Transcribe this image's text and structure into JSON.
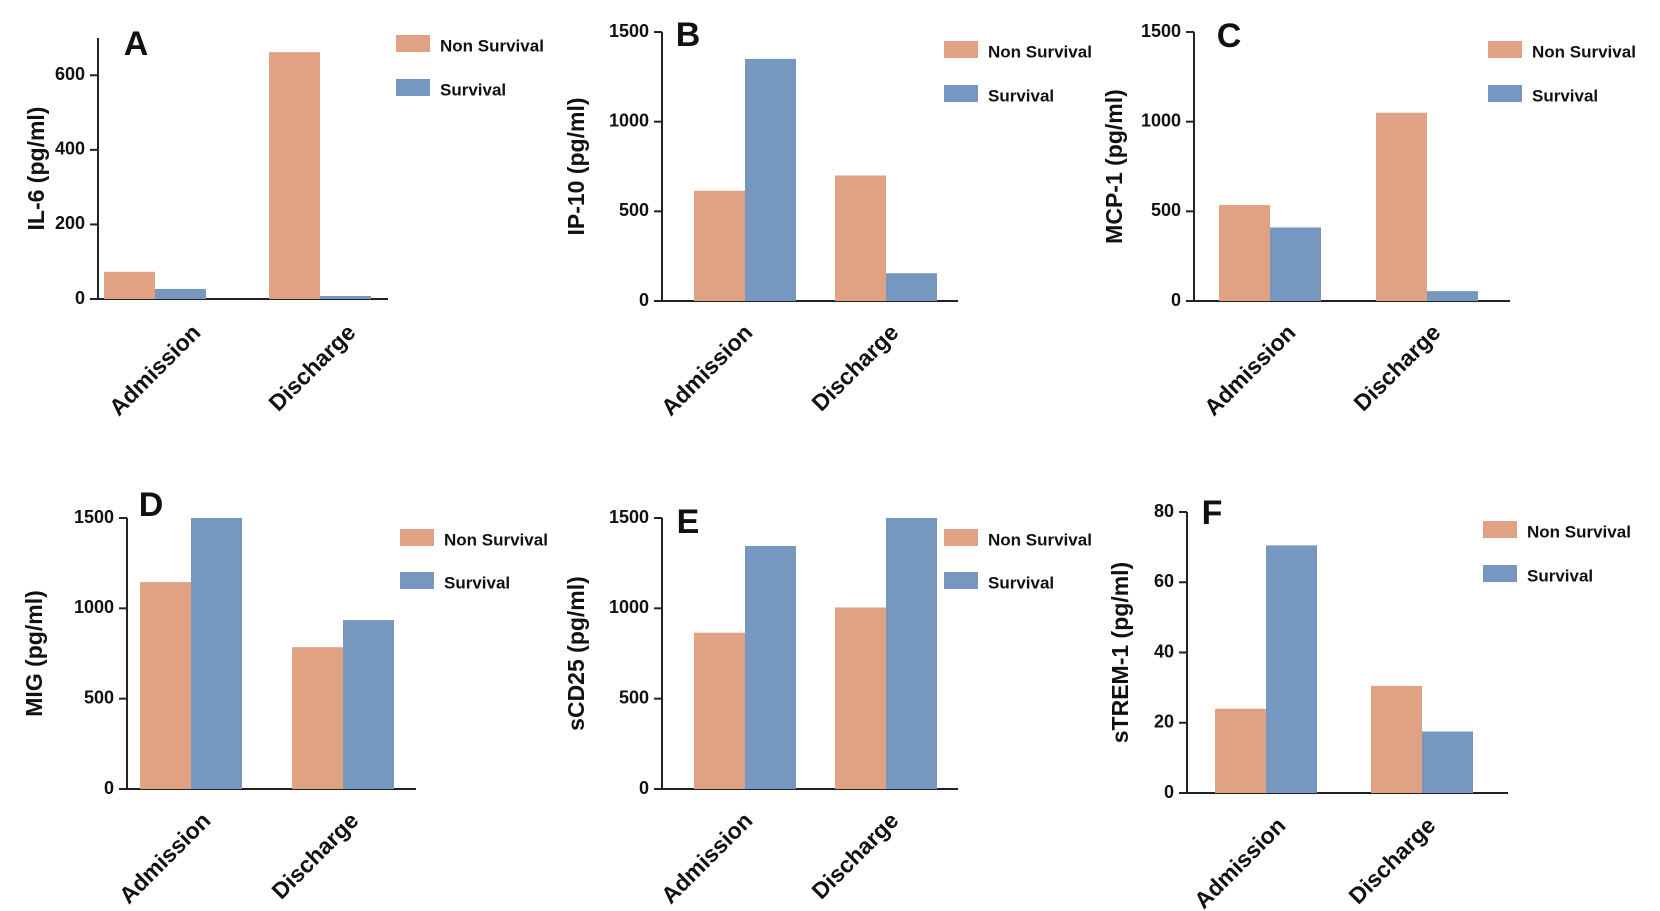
{
  "colors": {
    "non_survival": "#E0A283",
    "survival": "#7697BF"
  },
  "chart_data": [
    {
      "panel": "A",
      "type": "bar",
      "ylabel": "IL-6 (pg/ml)",
      "categories": [
        "Admission",
        "Discharge"
      ],
      "ylim": [
        0,
        700
      ],
      "yticks": [
        0,
        200,
        400,
        600
      ],
      "series": [
        {
          "name": "Non Survival",
          "values": [
            73,
            662
          ]
        },
        {
          "name": "Survival",
          "values": [
            27,
            8
          ]
        }
      ]
    },
    {
      "panel": "B",
      "type": "bar",
      "ylabel": "IP-10 (pg/ml)",
      "categories": [
        "Admission",
        "Discharge"
      ],
      "ylim": [
        0,
        1500
      ],
      "yticks": [
        0,
        500,
        1000,
        1500
      ],
      "series": [
        {
          "name": "Non Survival",
          "values": [
            615,
            700
          ]
        },
        {
          "name": "Survival",
          "values": [
            1350,
            155
          ]
        }
      ]
    },
    {
      "panel": "C",
      "type": "bar",
      "ylabel": "MCP-1 (pg/ml)",
      "categories": [
        "Admission",
        "Discharge"
      ],
      "ylim": [
        0,
        1500
      ],
      "yticks": [
        0,
        500,
        1000,
        1500
      ],
      "series": [
        {
          "name": "Non Survival",
          "values": [
            535,
            1050
          ]
        },
        {
          "name": "Survival",
          "values": [
            410,
            55
          ]
        }
      ]
    },
    {
      "panel": "D",
      "type": "bar",
      "ylabel": "MIG (pg/ml)",
      "categories": [
        "Admission",
        "Discharge"
      ],
      "ylim": [
        0,
        1500
      ],
      "yticks": [
        0,
        500,
        1000,
        1500
      ],
      "series": [
        {
          "name": "Non Survival",
          "values": [
            1145,
            785
          ]
        },
        {
          "name": "Survival",
          "values": [
            1500,
            935
          ]
        }
      ]
    },
    {
      "panel": "E",
      "type": "bar",
      "ylabel": "sCD25 (pg/ml)",
      "categories": [
        "Admission",
        "Discharge"
      ],
      "ylim": [
        0,
        1500
      ],
      "yticks": [
        0,
        500,
        1000,
        1500
      ],
      "series": [
        {
          "name": "Non Survival",
          "values": [
            865,
            1005
          ]
        },
        {
          "name": "Survival",
          "values": [
            1345,
            1500
          ]
        }
      ]
    },
    {
      "panel": "F",
      "type": "bar",
      "ylabel": "sTREM-1 (pg/ml)",
      "categories": [
        "Admission",
        "Discharge"
      ],
      "ylim": [
        0,
        80
      ],
      "yticks": [
        0,
        20,
        40,
        60,
        80
      ],
      "series": [
        {
          "name": "Non Survival",
          "values": [
            24,
            30.5
          ]
        },
        {
          "name": "Survival",
          "values": [
            70.5,
            17.5
          ]
        }
      ]
    }
  ]
}
